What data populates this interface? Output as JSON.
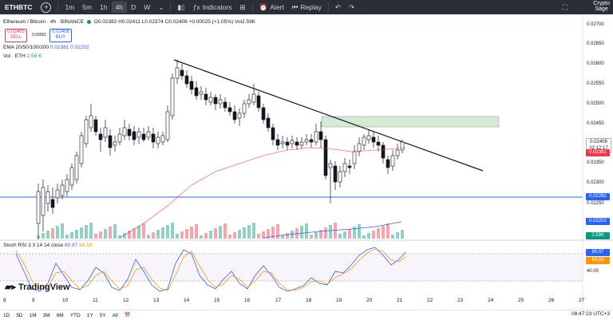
{
  "toolbar": {
    "symbol": "ETHBTC",
    "add_icon": "plus-circle-icon",
    "timeframes": [
      "1m",
      "5m",
      "1h",
      "4h",
      "D",
      "W"
    ],
    "active_timeframe": "4h",
    "indicators_label": "Indicators",
    "alert_label": "Alert",
    "replay_label": "Replay",
    "brand_line1": "Crypto",
    "brand_line2": "Sage"
  },
  "legend": {
    "title": "Ethereum / Bitcoin · 4h · BINANCE",
    "ohlc": "O0.02382 H0.02411 L0.02374 C0.02406 +0.00025 (+1.05%) Vol2.59K",
    "sell_price": "0.02405",
    "sell_label": "SELL",
    "buy_price": "0.02406",
    "buy_label": "BUY",
    "spread": "0.00001",
    "ema_label": "EMA 20/50/100/200",
    "ema_values": "0.02381  0.02202",
    "vol_label": "Vol · ETH",
    "vol_value": "2.59 K"
  },
  "rsi": {
    "label": "Stoch RSI 3 3 14 14 close",
    "k": "80.97",
    "d": "64.59"
  },
  "price_axis": {
    "ticks": [
      "0.02700",
      "0.02650",
      "0.02600",
      "0.02550",
      "0.02500",
      "0.02450",
      "0.02350",
      "0.02300",
      "0.02250"
    ],
    "current_price": "0.02406",
    "countdown": "02:12:17",
    "ema_tag": "0.02381",
    "hline_tag": "0.02262",
    "ema200_tag": "0.02202",
    "vol_tag": "2.59K"
  },
  "rsi_axis": {
    "k_tag": "80.97",
    "d_tag": "64.59",
    "tick": "40.00"
  },
  "time_axis": [
    "8",
    "9",
    "10",
    "11",
    "12",
    "13",
    "14",
    "15",
    "16",
    "17",
    "18",
    "19",
    "20",
    "21",
    "22",
    "23",
    "24",
    "25",
    "26",
    "27"
  ],
  "bottombar": {
    "ranges": [
      "1D",
      "5D",
      "1M",
      "3M",
      "6M",
      "YTD",
      "1Y",
      "5Y",
      "All"
    ],
    "clock": "08:47:23 UTC+3"
  },
  "logo": "TradingView",
  "colors": {
    "up": "#089981",
    "down": "#f23645",
    "ema_line": "#f23645",
    "hline": "#2962ff",
    "zone": "#c8e6c9"
  }
}
